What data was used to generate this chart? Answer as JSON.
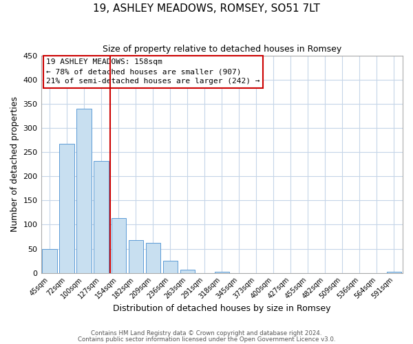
{
  "title": "19, ASHLEY MEADOWS, ROMSEY, SO51 7LT",
  "subtitle": "Size of property relative to detached houses in Romsey",
  "xlabel": "Distribution of detached houses by size in Romsey",
  "ylabel": "Number of detached properties",
  "bar_labels": [
    "45sqm",
    "72sqm",
    "100sqm",
    "127sqm",
    "154sqm",
    "182sqm",
    "209sqm",
    "236sqm",
    "263sqm",
    "291sqm",
    "318sqm",
    "345sqm",
    "373sqm",
    "400sqm",
    "427sqm",
    "455sqm",
    "482sqm",
    "509sqm",
    "536sqm",
    "564sqm",
    "591sqm"
  ],
  "bar_values": [
    50,
    267,
    340,
    232,
    113,
    68,
    62,
    25,
    7,
    0,
    2,
    0,
    0,
    0,
    0,
    0,
    0,
    0,
    0,
    0,
    3
  ],
  "bar_color": "#c8dff0",
  "bar_edge_color": "#5b9bd5",
  "vline_color": "#cc0000",
  "ylim": [
    0,
    450
  ],
  "yticks": [
    0,
    50,
    100,
    150,
    200,
    250,
    300,
    350,
    400,
    450
  ],
  "annotation_title": "19 ASHLEY MEADOWS: 158sqm",
  "annotation_line1": "← 78% of detached houses are smaller (907)",
  "annotation_line2": "21% of semi-detached houses are larger (242) →",
  "footer1": "Contains HM Land Registry data © Crown copyright and database right 2024.",
  "footer2": "Contains public sector information licensed under the Open Government Licence v3.0.",
  "background_color": "#ffffff",
  "grid_color": "#c5d5e8"
}
